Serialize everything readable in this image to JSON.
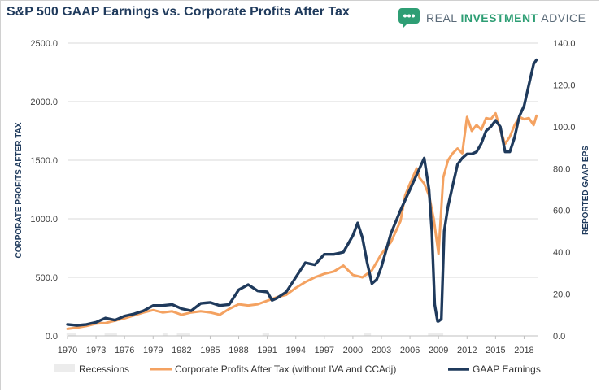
{
  "title": "S&P 500 GAAP Earnings vs. Corporate Profits After Tax",
  "brand": {
    "logo_icon": "chat-bubble-icon",
    "word1": "REAL ",
    "word2": "INVESTMENT",
    "word3": " ADVICE",
    "color_primary": "#2e9e74",
    "color_text": "#5a6a78"
  },
  "chart_data": {
    "type": "line",
    "ylabel_left": "CORPORATE PROFITS AFTER TAX",
    "ylabel_right": "REPORTED GAAP EPS",
    "left_ylim": [
      0,
      2500
    ],
    "right_ylim": [
      0,
      140
    ],
    "left_ticks": [
      "0.0",
      "500.0",
      "1000.0",
      "1500.0",
      "2000.0",
      "2500.0"
    ],
    "right_ticks": [
      "0.0",
      "20.0",
      "40.0",
      "60.0",
      "80.0",
      "100.0",
      "120.0",
      "140.0"
    ],
    "x_ticks": [
      "1970",
      "1973",
      "1976",
      "1979",
      "1982",
      "1985",
      "1988",
      "1991",
      "1994",
      "1997",
      "2000",
      "2003",
      "2006",
      "2009",
      "2012",
      "2015",
      "2018"
    ],
    "xlim": [
      1970,
      2019.5
    ],
    "grid": true,
    "legend_position": "bottom",
    "recessions": {
      "name": "Recessions",
      "periods": [
        [
          1969.9,
          1970.9
        ],
        [
          1973.9,
          1975.2
        ],
        [
          1980.0,
          1980.5
        ],
        [
          1981.5,
          1982.9
        ],
        [
          1990.5,
          1991.2
        ],
        [
          2001.2,
          2001.9
        ],
        [
          2007.9,
          2009.5
        ]
      ]
    },
    "series": [
      {
        "name": "Corporate Profits After Tax (without IVA and CCAdj)",
        "color": "#f4a261",
        "axis": "left",
        "x": [
          1970,
          1971,
          1972,
          1973,
          1974,
          1975,
          1976,
          1977,
          1978,
          1979,
          1980,
          1981,
          1982,
          1983,
          1984,
          1985,
          1986,
          1987,
          1988,
          1989,
          1990,
          1991,
          1992,
          1993,
          1994,
          1995,
          1996,
          1997,
          1998,
          1999,
          2000,
          2001,
          2002,
          2003,
          2004,
          2005,
          2005.5,
          2006,
          2006.7,
          2007,
          2007.5,
          2008,
          2008.5,
          2009,
          2009.5,
          2010,
          2010.5,
          2011,
          2011.5,
          2012,
          2012.5,
          2013,
          2013.5,
          2014,
          2014.5,
          2015,
          2015.5,
          2016,
          2016.5,
          2017,
          2017.5,
          2018,
          2018.5,
          2019,
          2019.3
        ],
        "values": [
          60,
          70,
          85,
          105,
          110,
          130,
          150,
          175,
          200,
          220,
          200,
          210,
          180,
          200,
          210,
          200,
          180,
          230,
          270,
          260,
          270,
          300,
          330,
          350,
          410,
          460,
          500,
          530,
          550,
          600,
          520,
          500,
          560,
          700,
          800,
          980,
          1200,
          1300,
          1430,
          1350,
          1300,
          1200,
          1000,
          700,
          1350,
          1500,
          1560,
          1600,
          1560,
          1870,
          1750,
          1800,
          1760,
          1860,
          1850,
          1900,
          1760,
          1640,
          1700,
          1800,
          1870,
          1850,
          1860,
          1800,
          1880
        ]
      },
      {
        "name": "GAAP Earnings",
        "color": "#1f3a5c",
        "axis": "right",
        "x": [
          1970,
          1971,
          1972,
          1973,
          1974,
          1975,
          1976,
          1977,
          1978,
          1979,
          1980,
          1981,
          1982,
          1983,
          1984,
          1985,
          1986,
          1987,
          1988,
          1989,
          1990,
          1991,
          1991.5,
          1992,
          1993,
          1994,
          1995,
          1996,
          1997,
          1998,
          1999,
          2000,
          2000.5,
          2001,
          2001.5,
          2002,
          2002.5,
          2003,
          2004,
          2005,
          2006,
          2007,
          2007.5,
          2008,
          2008.3,
          2008.6,
          2008.9,
          2009,
          2009.3,
          2009.6,
          2010,
          2010.5,
          2011,
          2011.5,
          2012,
          2012.5,
          2013,
          2013.5,
          2014,
          2014.5,
          2015,
          2015.5,
          2016,
          2016.5,
          2017,
          2017.5,
          2018,
          2018.5,
          2019,
          2019.3
        ],
        "values": [
          5.5,
          5.0,
          5.5,
          6.5,
          8.5,
          7.5,
          9.5,
          10.5,
          12,
          14.5,
          14.5,
          15,
          13,
          12,
          15.5,
          16,
          14.5,
          15,
          22,
          24.5,
          21.5,
          21,
          17,
          18,
          21,
          28,
          35,
          34,
          39,
          39,
          40,
          48,
          54,
          47,
          35,
          25,
          27,
          33,
          49,
          60,
          70,
          80,
          85,
          70,
          50,
          15,
          7,
          7,
          8,
          50,
          62,
          72,
          82,
          85,
          87,
          87,
          88,
          92,
          98,
          100,
          103,
          100,
          88,
          88,
          95,
          105,
          110,
          120,
          130,
          132
        ]
      }
    ]
  }
}
